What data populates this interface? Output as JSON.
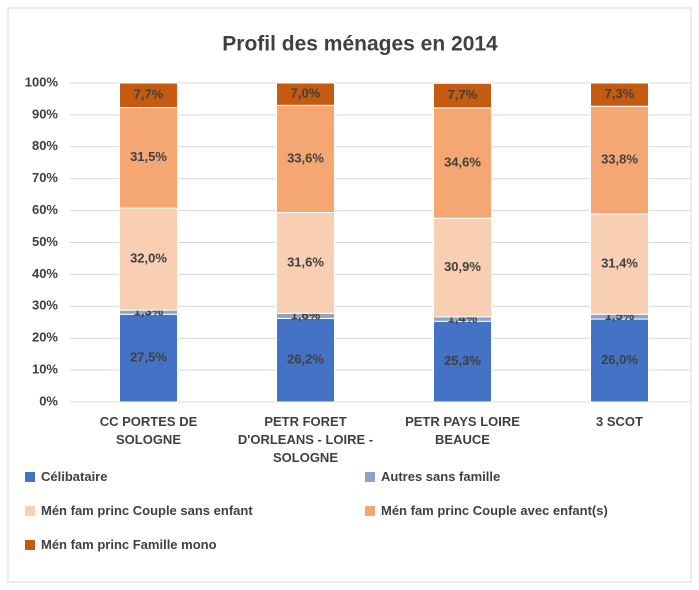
{
  "chart_data": {
    "type": "stacked_bar",
    "title": "Profil des ménages en 2014",
    "categories": [
      "CC PORTES DE SOLOGNE",
      "PETR FORET D'ORLEANS - LOIRE - SOLOGNE",
      "PETR PAYS LOIRE BEAUCE",
      "3 SCOT"
    ],
    "series": [
      {
        "name": "Célibataire",
        "color": "#4472c4",
        "values": [
          27.5,
          26.2,
          25.3,
          26.0
        ],
        "value_labels": [
          "27,5%",
          "26,2%",
          "25,3%",
          "26,0%"
        ]
      },
      {
        "name": "Autres sans famille",
        "color": "#8ea3c8",
        "values": [
          1.3,
          1.6,
          1.4,
          1.5
        ],
        "value_labels": [
          "1,3%",
          "1,6%",
          "1,4%",
          "1,5%"
        ]
      },
      {
        "name": "Mén fam princ Couple sans enfant",
        "color": "#f8cfb2",
        "values": [
          32.0,
          31.6,
          30.9,
          31.4
        ],
        "value_labels": [
          "32,0%",
          "31,6%",
          "30,9%",
          "31,4%"
        ]
      },
      {
        "name": "Mén fam princ Couple avec enfant(s)",
        "color": "#f4a772",
        "values": [
          31.5,
          33.6,
          34.6,
          33.8
        ],
        "value_labels": [
          "31,5%",
          "33,6%",
          "34,6%",
          "33,8%"
        ]
      },
      {
        "name": "Mén fam princ Famille mono",
        "color": "#c55a11",
        "values": [
          7.7,
          7.0,
          7.7,
          7.3
        ],
        "value_labels": [
          "7,7%",
          "7,0%",
          "7,7%",
          "7,3%"
        ]
      }
    ],
    "ylim": [
      0,
      100
    ],
    "yticks": [
      {
        "value": 0,
        "label": "0%"
      },
      {
        "value": 10,
        "label": "10%"
      },
      {
        "value": 20,
        "label": "20%"
      },
      {
        "value": 30,
        "label": "30%"
      },
      {
        "value": 40,
        "label": "40%"
      },
      {
        "value": 50,
        "label": "50%"
      },
      {
        "value": 60,
        "label": "60%"
      },
      {
        "value": 70,
        "label": "70%"
      },
      {
        "value": 80,
        "label": "80%"
      },
      {
        "value": 90,
        "label": "90%"
      },
      {
        "value": 100,
        "label": "100%"
      }
    ],
    "grid": true,
    "legend": "bottom"
  }
}
